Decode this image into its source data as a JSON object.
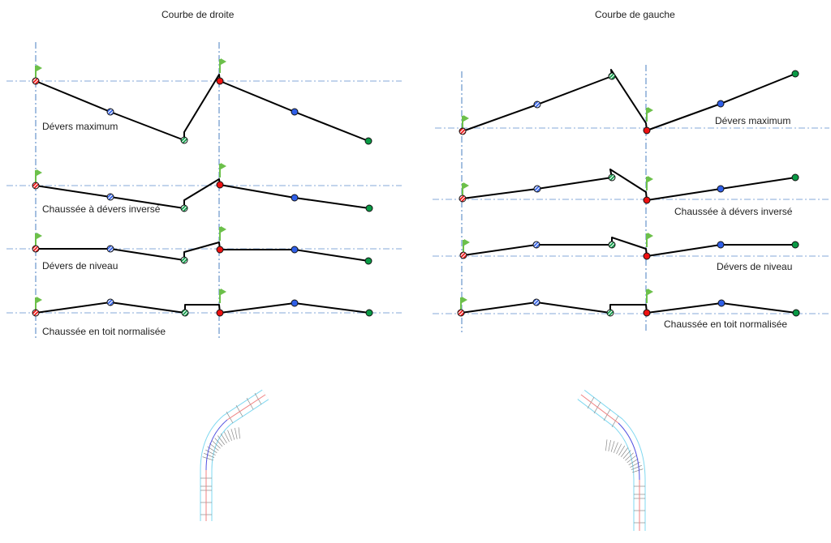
{
  "colors": {
    "axis": "#4a7fc1",
    "baseline": "#9dbbe0",
    "profile": "#000000",
    "flag": "#6cc04a",
    "edge_point": "#ee1111",
    "mid_point": "#2f5fe8",
    "outer_point": "#0a9a45",
    "road_edge": "#7fd8f0",
    "road_center_tangent": "#f08080",
    "road_center_curve": "#5050e0"
  },
  "panels": [
    {
      "id": "right-curve",
      "title": "Courbe de droite",
      "rows": [
        {
          "label": "Dévers maximum"
        },
        {
          "label": "Chaussée à dévers inversé"
        },
        {
          "label": "Dévers de niveau"
        },
        {
          "label": "Chaussée en toit normalisée"
        }
      ]
    },
    {
      "id": "left-curve",
      "title": "Courbe de gauche",
      "rows": [
        {
          "label": "Dévers maximum"
        },
        {
          "label": "Chaussée à dévers inversé"
        },
        {
          "label": "Dévers de niveau"
        },
        {
          "label": "Chaussée en toit normalisée"
        }
      ]
    }
  ],
  "icons": {
    "flag": "flag-icon",
    "hatched_point": "hatched-point-icon",
    "solid_point": "solid-point-icon"
  }
}
